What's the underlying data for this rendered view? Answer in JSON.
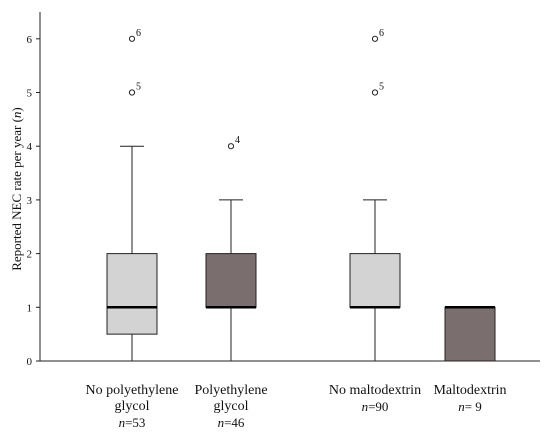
{
  "chart_data": {
    "type": "boxplot",
    "ylabel_prefix": "Reported NEC rate per year (",
    "ylabel_var": "n",
    "ylabel_suffix": ")",
    "ylim": [
      0,
      6.5
    ],
    "yticks": [
      "0",
      "1",
      "2",
      "3",
      "4",
      "5",
      "6"
    ],
    "grid": false,
    "groups": [
      {
        "line1": "No polyethylene",
        "line2": "glycol",
        "n_prefix": "n",
        "n_value": "=53",
        "fill": "#d3d3d3",
        "min": 0,
        "q1": 0.5,
        "median": 1,
        "q3": 2,
        "max": 4,
        "outliers": [
          {
            "value": 5,
            "label": "5"
          },
          {
            "value": 6,
            "label": "6"
          }
        ]
      },
      {
        "line1": "Polyethylene",
        "line2": "glycol",
        "n_prefix": "n",
        "n_value": "=46",
        "fill": "#7a6e6e",
        "min": 0,
        "q1": 1,
        "median": 1,
        "q3": 2,
        "max": 3,
        "outliers": [
          {
            "value": 4,
            "label": "4"
          }
        ]
      },
      {
        "line1": "No maltodextrin",
        "line2": "",
        "n_prefix": "n",
        "n_value": "=90",
        "fill": "#d3d3d3",
        "min": 0,
        "q1": 1,
        "median": 1,
        "q3": 2,
        "max": 3,
        "outliers": [
          {
            "value": 5,
            "label": "5"
          },
          {
            "value": 6,
            "label": "6"
          }
        ]
      },
      {
        "line1": "Maltodextrin",
        "line2": "",
        "n_prefix": "n",
        "n_value": "= 9",
        "fill": "#7a6e6e",
        "min": 0,
        "q1": 0,
        "median": 1,
        "q3": 1,
        "max": 1,
        "outliers": []
      }
    ]
  }
}
